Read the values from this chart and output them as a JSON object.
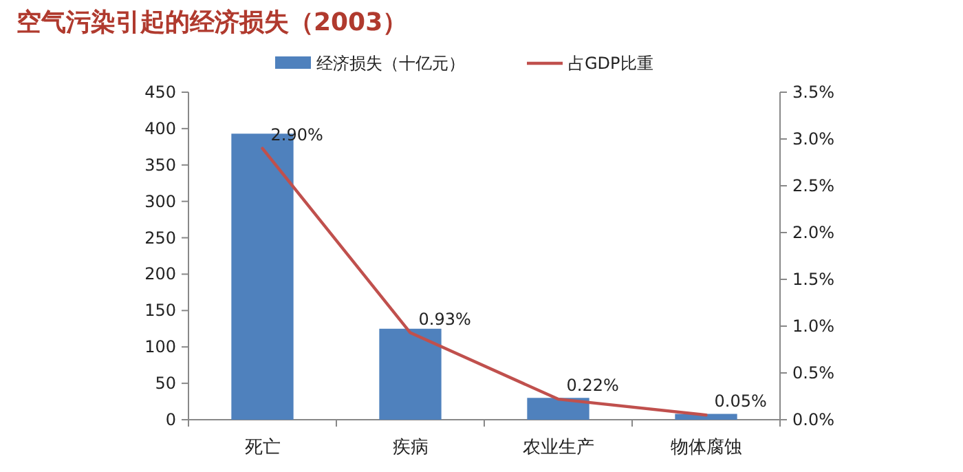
{
  "chart_data": {
    "type": "bar",
    "title": "空气污染引起的经济损失（2003）",
    "categories": [
      "死亡",
      "疾病",
      "农业生产",
      "物体腐蚀"
    ],
    "series": [
      {
        "name": "经济损失（十亿元）",
        "color": "#4f81bd",
        "values": [
          393,
          125,
          30,
          8
        ]
      },
      {
        "name": "占GDP比重",
        "type": "line",
        "axis": "y2",
        "color": "#c0504d",
        "values": [
          2.9,
          0.93,
          0.22,
          0.05
        ],
        "value_labels": [
          "2.90%",
          "0.93%",
          "0.22%",
          "0.05%"
        ]
      }
    ],
    "ylim": [
      0,
      450
    ],
    "yticks": [
      0,
      50,
      100,
      150,
      200,
      250,
      300,
      350,
      400,
      450
    ],
    "y2lim": [
      0,
      3.5
    ],
    "y2ticks": [
      {
        "value": 0,
        "label": "0.0%"
      },
      {
        "value": 0.5,
        "label": "0.5%"
      },
      {
        "value": 1,
        "label": "1.0%"
      },
      {
        "value": 1.5,
        "label": "1.5%"
      },
      {
        "value": 2,
        "label": "2.0%"
      },
      {
        "value": 2.5,
        "label": "2.5%"
      },
      {
        "value": 3,
        "label": "3.0%"
      },
      {
        "value": 3.5,
        "label": "3.5%"
      }
    ],
    "legend": "top",
    "grid": false,
    "marker": "none"
  }
}
